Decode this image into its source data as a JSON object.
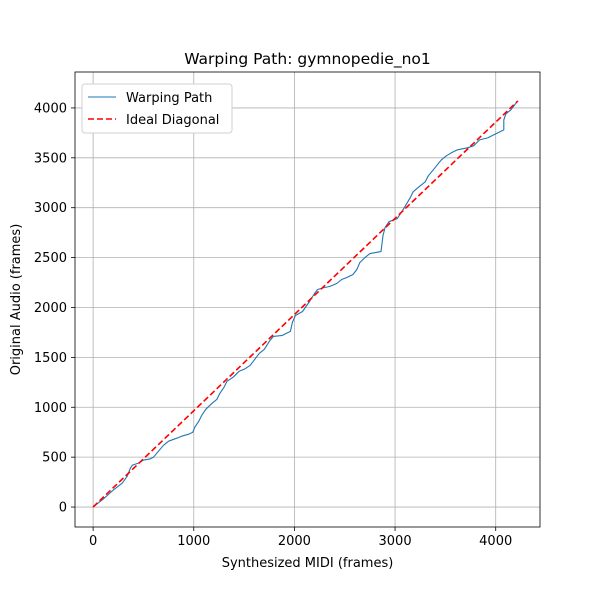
{
  "chart_data": {
    "type": "line",
    "title": "Warping Path: gymnopedie_no1",
    "xlabel": "Synthesized MIDI (frames)",
    "ylabel": "Original Audio (frames)",
    "xlim": [
      -180,
      4440
    ],
    "ylim": [
      -200,
      4360
    ],
    "xticks": [
      0,
      1000,
      2000,
      3000,
      4000
    ],
    "xtick_labels": [
      "0",
      "1000",
      "2000",
      "3000",
      "4000"
    ],
    "yticks": [
      0,
      500,
      1000,
      1500,
      2000,
      2500,
      3000,
      3500,
      4000
    ],
    "ytick_labels": [
      "0",
      "500",
      "1000",
      "1500",
      "2000",
      "2500",
      "3000",
      "3500",
      "4000"
    ],
    "grid": true,
    "legend_position": "top-left",
    "series": [
      {
        "name": "Warping Path",
        "style": "solid",
        "color": "#1f77b4",
        "points": [
          [
            0,
            0
          ],
          [
            100,
            80
          ],
          [
            200,
            170
          ],
          [
            290,
            240
          ],
          [
            340,
            310
          ],
          [
            370,
            390
          ],
          [
            390,
            420
          ],
          [
            450,
            440
          ],
          [
            500,
            470
          ],
          [
            560,
            480
          ],
          [
            600,
            500
          ],
          [
            650,
            560
          ],
          [
            700,
            620
          ],
          [
            750,
            660
          ],
          [
            830,
            690
          ],
          [
            880,
            710
          ],
          [
            950,
            730
          ],
          [
            990,
            750
          ],
          [
            1010,
            800
          ],
          [
            1050,
            860
          ],
          [
            1080,
            920
          ],
          [
            1120,
            980
          ],
          [
            1170,
            1030
          ],
          [
            1230,
            1080
          ],
          [
            1260,
            1140
          ],
          [
            1300,
            1200
          ],
          [
            1330,
            1260
          ],
          [
            1390,
            1300
          ],
          [
            1450,
            1360
          ],
          [
            1500,
            1380
          ],
          [
            1560,
            1420
          ],
          [
            1620,
            1500
          ],
          [
            1650,
            1540
          ],
          [
            1700,
            1580
          ],
          [
            1750,
            1660
          ],
          [
            1790,
            1710
          ],
          [
            1880,
            1720
          ],
          [
            1960,
            1760
          ],
          [
            1980,
            1850
          ],
          [
            2010,
            1920
          ],
          [
            2080,
            1960
          ],
          [
            2150,
            2060
          ],
          [
            2200,
            2140
          ],
          [
            2230,
            2180
          ],
          [
            2300,
            2200
          ],
          [
            2350,
            2210
          ],
          [
            2420,
            2240
          ],
          [
            2470,
            2280
          ],
          [
            2520,
            2300
          ],
          [
            2580,
            2330
          ],
          [
            2620,
            2380
          ],
          [
            2650,
            2450
          ],
          [
            2700,
            2500
          ],
          [
            2750,
            2540
          ],
          [
            2860,
            2560
          ],
          [
            2880,
            2720
          ],
          [
            2900,
            2800
          ],
          [
            2940,
            2860
          ],
          [
            3020,
            2890
          ],
          [
            3080,
            2980
          ],
          [
            3150,
            3100
          ],
          [
            3180,
            3160
          ],
          [
            3250,
            3220
          ],
          [
            3300,
            3260
          ],
          [
            3330,
            3320
          ],
          [
            3380,
            3380
          ],
          [
            3420,
            3430
          ],
          [
            3460,
            3480
          ],
          [
            3510,
            3520
          ],
          [
            3560,
            3550
          ],
          [
            3620,
            3580
          ],
          [
            3720,
            3600
          ],
          [
            3780,
            3620
          ],
          [
            3840,
            3680
          ],
          [
            3920,
            3700
          ],
          [
            4000,
            3740
          ],
          [
            4080,
            3780
          ],
          [
            4080,
            3880
          ],
          [
            4100,
            3940
          ],
          [
            4150,
            3980
          ],
          [
            4210,
            4060
          ]
        ]
      },
      {
        "name": "Ideal Diagonal",
        "style": "dashed",
        "color": "#ff0000",
        "points": [
          [
            0,
            0
          ],
          [
            4220,
            4070
          ]
        ]
      }
    ]
  }
}
